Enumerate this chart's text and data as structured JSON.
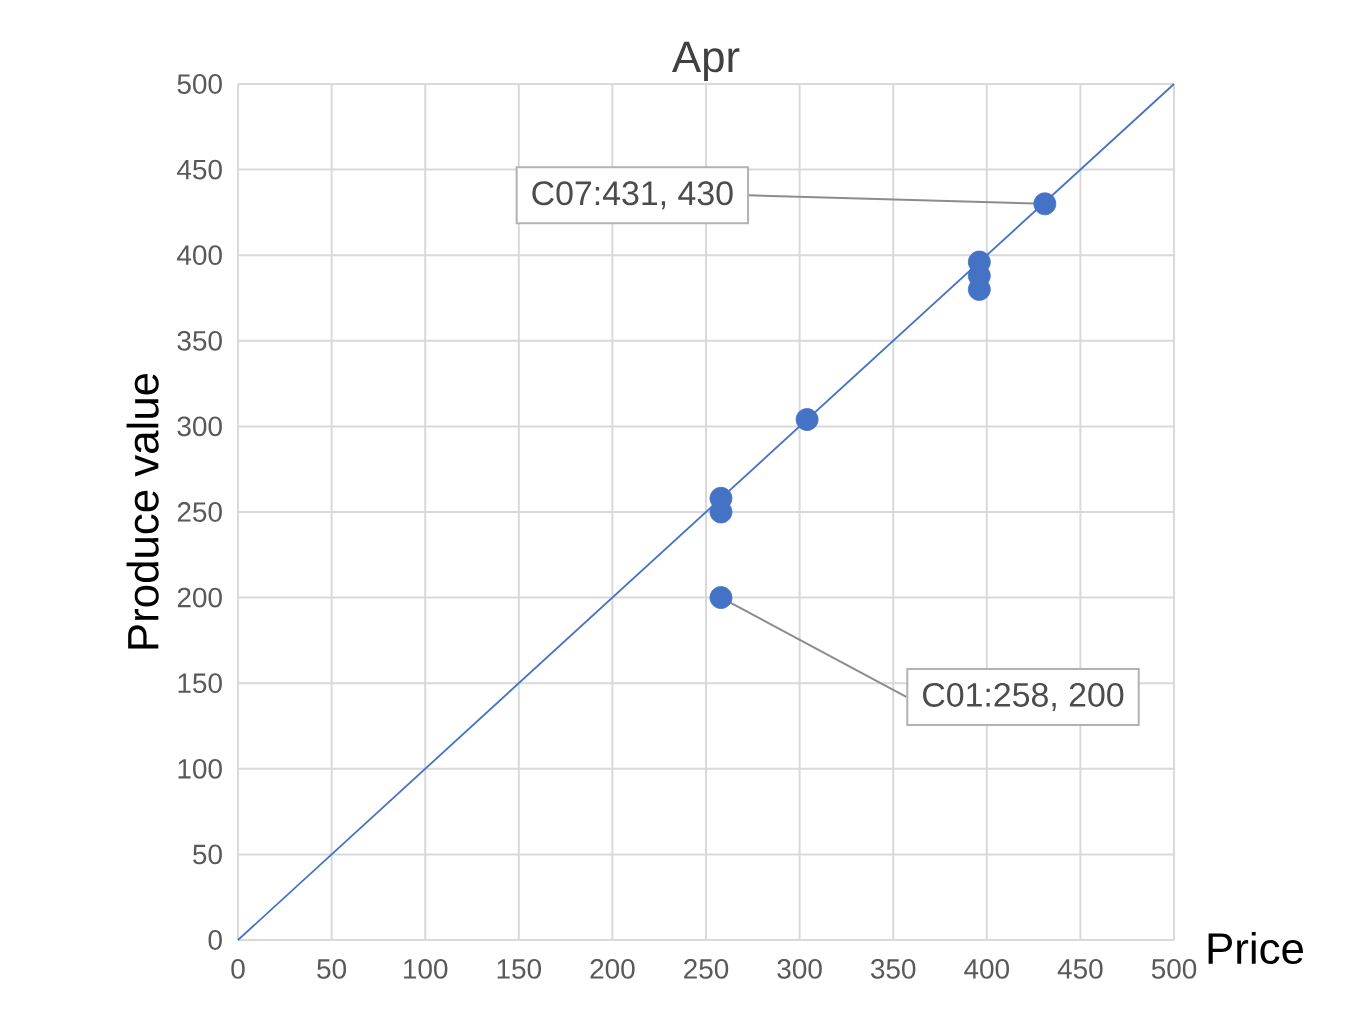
{
  "chart_data": {
    "type": "scatter",
    "title": "Apr",
    "xlabel": "Price",
    "ylabel": "Produce value",
    "series": [
      {
        "color": "#4472c4",
        "x": [
          258,
          258,
          258,
          304,
          396,
          396,
          396,
          431
        ],
        "values": [
          200,
          250,
          258,
          304,
          380,
          388,
          396,
          430
        ],
        "marker": "circle"
      },
      {
        "type": "line",
        "color": "#4472c4",
        "x": [
          0,
          500
        ],
        "values": [
          0,
          500
        ],
        "marker": "none"
      }
    ],
    "annotations": [
      {
        "text": "C07:431, 430",
        "x": 431,
        "y": 430
      },
      {
        "text": "C01:258, 200",
        "x": 258,
        "y": 200
      }
    ],
    "xlim": [
      0,
      500
    ],
    "ylim": [
      0,
      500
    ],
    "xticks": [
      0,
      50,
      100,
      150,
      200,
      250,
      300,
      350,
      400,
      450,
      500
    ],
    "yticks": [
      0,
      50,
      100,
      150,
      200,
      250,
      300,
      350,
      400,
      450,
      500
    ],
    "grid": true
  }
}
